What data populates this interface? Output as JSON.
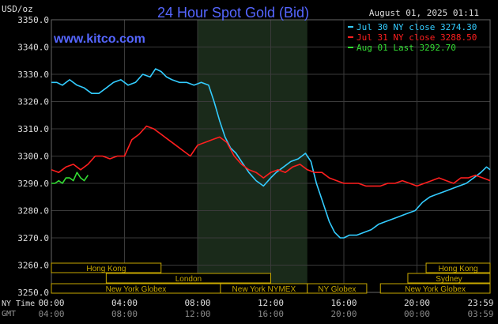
{
  "header": {
    "unit": "USD/oz",
    "title": "24 Hour Spot Gold (Bid)",
    "timestamp": "August 01, 2025 01:11",
    "watermark": "www.kitco.com"
  },
  "legend": [
    {
      "label": "Jul 30 NY close 3274.30",
      "color": "#33ccff"
    },
    {
      "label": "Jul 31 NY close 3288.50",
      "color": "#ff1f1f"
    },
    {
      "label": "Aug 01 Last 3292.70",
      "color": "#33dd33"
    }
  ],
  "x_axis": {
    "row1_label": "NY Time",
    "row2_label": "GMT",
    "ny_ticks": [
      "00:00",
      "04:00",
      "08:00",
      "12:00",
      "16:00",
      "20:00",
      "23:59"
    ],
    "gmt_ticks": [
      "04:00",
      "08:00",
      "12:00",
      "16:00",
      "20:00",
      "00:00",
      "03:59"
    ]
  },
  "sessions": [
    {
      "label": "Hong Kong",
      "start": 0,
      "end": 6,
      "row": 0
    },
    {
      "label": "London",
      "start": 3,
      "end": 12,
      "row": 1
    },
    {
      "label": "New York Globex",
      "start": 0,
      "end": 9.25,
      "row": 2
    },
    {
      "label": "New York NYMEX",
      "start": 9.25,
      "end": 14,
      "row": 2
    },
    {
      "label": "NY Globex",
      "start": 14,
      "end": 17.25,
      "row": 2
    },
    {
      "label": "Hong Kong",
      "start": 20.5,
      "end": 24,
      "row": 0
    },
    {
      "label": "Sydney",
      "start": 19.5,
      "end": 24,
      "row": 1
    },
    {
      "label": "New York Globex",
      "start": 18,
      "end": 24,
      "row": 2
    }
  ],
  "colors": {
    "background": "#000000",
    "grid": "#3a3a3a",
    "shade": "#1a2a1a",
    "title": "#5566ff",
    "session_box": "#c8a800",
    "text": "#dddddd"
  },
  "chart_data": {
    "type": "line",
    "xlabel": "",
    "ylabel": "USD/oz",
    "ylim": [
      3250,
      3350
    ],
    "xlim": [
      0,
      24
    ],
    "y_ticks": [
      3250.0,
      3260.0,
      3270.0,
      3280.0,
      3290.0,
      3300.0,
      3310.0,
      3320.0,
      3330.0,
      3340.0,
      3350.0
    ],
    "shaded_region": [
      8.0,
      14.0
    ],
    "grid": true,
    "series": [
      {
        "name": "Jul 30 NY close 3274.30",
        "color": "#33ccff",
        "x": [
          0,
          0.3,
          0.6,
          1.0,
          1.4,
          1.8,
          2.2,
          2.6,
          3.0,
          3.4,
          3.8,
          4.2,
          4.6,
          5.0,
          5.4,
          5.7,
          6.0,
          6.3,
          6.6,
          7.0,
          7.4,
          7.8,
          8.2,
          8.6,
          8.9,
          9.2,
          9.5,
          9.8,
          10.1,
          10.4,
          10.8,
          11.2,
          11.6,
          12.0,
          12.3,
          12.7,
          13.1,
          13.5,
          13.9,
          14.2,
          14.5,
          14.8,
          15.0,
          15.2,
          15.5,
          15.8,
          16.0,
          16.3,
          16.7,
          17.1,
          17.5,
          17.9,
          18.3,
          18.7,
          19.1,
          19.5,
          19.9,
          20.3,
          20.7,
          21.1,
          21.5,
          21.9,
          22.3,
          22.7,
          23.1,
          23.5,
          23.8,
          24.0
        ],
        "values": [
          3327,
          3327,
          3326,
          3328,
          3326,
          3325,
          3323,
          3323,
          3325,
          3327,
          3328,
          3326,
          3327,
          3330,
          3329,
          3332,
          3331,
          3329,
          3328,
          3327,
          3327,
          3326,
          3327,
          3326,
          3320,
          3313,
          3307,
          3303,
          3301,
          3298,
          3294,
          3291,
          3289,
          3292,
          3294,
          3296,
          3298,
          3299,
          3301,
          3298,
          3290,
          3284,
          3280,
          3276,
          3272,
          3270,
          3270,
          3271,
          3271,
          3272,
          3273,
          3275,
          3276,
          3277,
          3278,
          3279,
          3280,
          3283,
          3285,
          3286,
          3287,
          3288,
          3289,
          3290,
          3292,
          3294,
          3296,
          3295
        ]
      },
      {
        "name": "Jul 31 NY close 3288.50",
        "color": "#ff1f1f",
        "x": [
          0,
          0.4,
          0.8,
          1.2,
          1.6,
          2.0,
          2.4,
          2.8,
          3.2,
          3.6,
          4.0,
          4.4,
          4.8,
          5.2,
          5.6,
          6.0,
          6.4,
          6.8,
          7.2,
          7.6,
          8.0,
          8.4,
          8.8,
          9.2,
          9.6,
          10.0,
          10.4,
          10.8,
          11.2,
          11.6,
          12.0,
          12.4,
          12.8,
          13.2,
          13.6,
          14.0,
          14.4,
          14.8,
          15.2,
          15.6,
          16.0,
          16.4,
          16.8,
          17.2,
          17.6,
          18.0,
          18.4,
          18.8,
          19.2,
          19.6,
          20.0,
          20.4,
          20.8,
          21.2,
          21.6,
          22.0,
          22.4,
          22.8,
          23.2,
          23.6,
          24.0
        ],
        "values": [
          3295,
          3294,
          3296,
          3297,
          3295,
          3297,
          3300,
          3300,
          3299,
          3300,
          3300,
          3306,
          3308,
          3311,
          3310,
          3308,
          3306,
          3304,
          3302,
          3300,
          3304,
          3305,
          3306,
          3307,
          3305,
          3300,
          3297,
          3295,
          3294,
          3292,
          3294,
          3295,
          3294,
          3296,
          3297,
          3295,
          3294,
          3294,
          3292,
          3291,
          3290,
          3290,
          3290,
          3289,
          3289,
          3289,
          3290,
          3290,
          3291,
          3290,
          3289,
          3290,
          3291,
          3292,
          3291,
          3290,
          3292,
          3292,
          3293,
          3292,
          3291
        ]
      },
      {
        "name": "Aug 01 Last 3292.70",
        "color": "#33dd33",
        "x": [
          0,
          0.2,
          0.4,
          0.6,
          0.8,
          1.0,
          1.2,
          1.4,
          1.6,
          1.8,
          2.0
        ],
        "values": [
          3290,
          3290,
          3291,
          3290,
          3292,
          3292,
          3291,
          3294,
          3292,
          3291,
          3293
        ]
      }
    ]
  }
}
